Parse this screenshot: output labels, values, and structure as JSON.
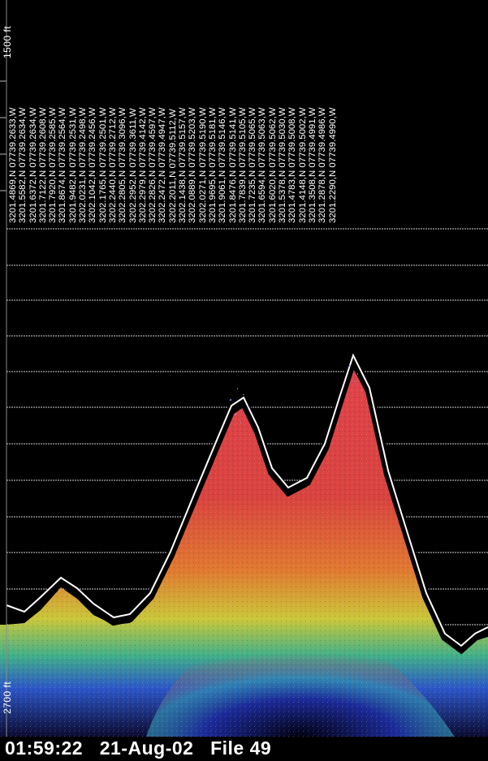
{
  "depth_scale": {
    "top_label": "1500 ft",
    "bottom_label": "2700 ft"
  },
  "track_points": [
    "3201.4869,N 07739.2633,W",
    "3201.5582,N 07739.2634,W",
    "3201.6372,N 07739.2634,W",
    "3201.7122,N 07739.2608,W",
    "3201.7920,N 07739.2585,W",
    "3201.8674,N 07739.2564,W",
    "3201.9482,N 07739.2531,W",
    "3202.0231,N 07739.2498,W",
    "3202.1042,N 07739.2456,W",
    "3202.1765,N 07739.2501,W",
    "3202.2440,N 07739.2712,W",
    "3202.2805,N 07739.3096,W",
    "3202.2952,N 07739.3611,W",
    "3202.2979,N 07739.4142,W",
    "3202.2826,N 07739.4597,W",
    "3202.2472,N 07739.4947,W",
    "3202.2011,N 07739.5112,W",
    "3202.1438,N 07739.5157,W",
    "3202.0889,N 07739.5203,W",
    "3202.0271,N 07739.5190,W",
    "3201.9695,N 07739.5181,W",
    "3201.9061,N 07739.5146,W",
    "3201.8476,N 07739.5141,W",
    "3201.7839,N 07739.5105,W",
    "3201.7235,N 07739.5065,W",
    "3201.6594,N 07739.5063,W",
    "3201.6020,N 07739.5062,W",
    "3201.5378,N 07739.5030,W",
    "3201.4783,N 07739.5008,W",
    "3201.4148,N 07739.5002,W",
    "3201.3508,N 07739.4991,W",
    "3201.2878,N 07739.4986,W",
    "3201.2290,N 07739.4990,W"
  ],
  "status": {
    "text": "01:59:22   21-Aug-02   File 49"
  },
  "colors": {
    "background": "#000000",
    "gridline": "#d8d8d8",
    "seafloor_line": "#ffffff"
  }
}
